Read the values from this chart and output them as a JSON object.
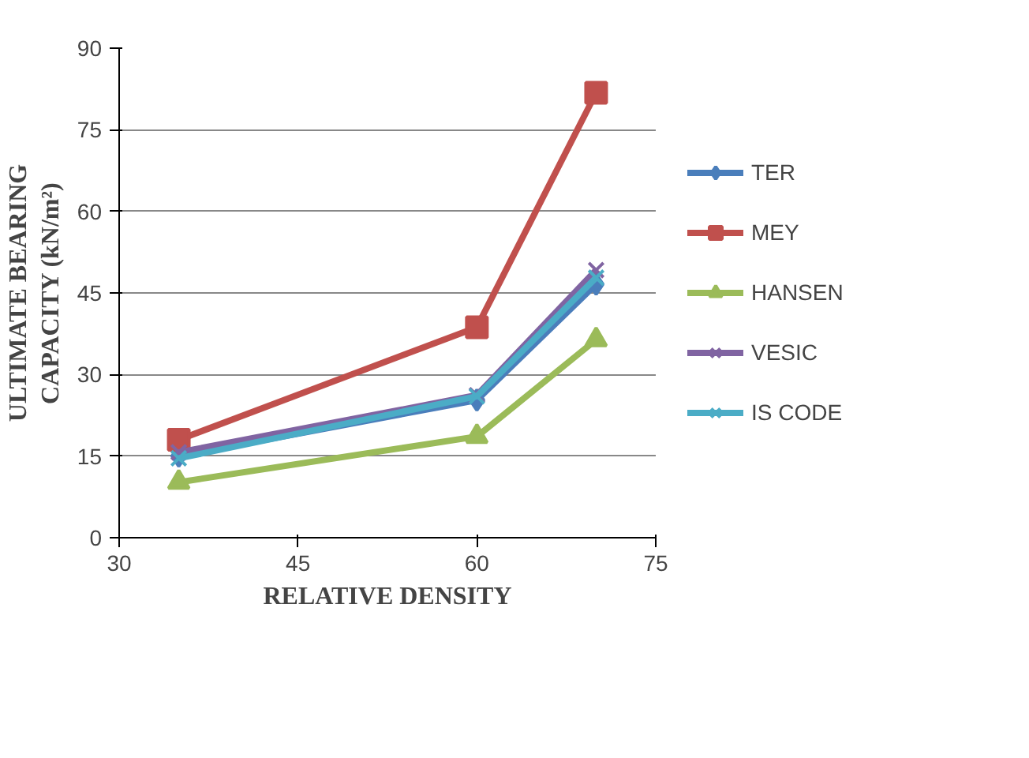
{
  "chart_data": {
    "type": "line",
    "xlabel": "RELATIVE DENSITY",
    "ylabel": "ULTIMATE BEARING CAPACITY (kN/m²)",
    "x": [
      35,
      60,
      70
    ],
    "xlim": [
      30,
      75
    ],
    "xticks": [
      30,
      45,
      60,
      75
    ],
    "ylim": [
      0,
      90
    ],
    "yticks": [
      0,
      15,
      30,
      45,
      60,
      75,
      90
    ],
    "grid": "y",
    "legend": "right",
    "series": [
      {
        "name": "TER",
        "color": "#4a7ebb",
        "marker": "diamond",
        "values": [
          15,
          25.3,
          46.6
        ]
      },
      {
        "name": "MEY",
        "color": "#c0504d",
        "marker": "square",
        "values": [
          18,
          38.7,
          81.8
        ]
      },
      {
        "name": "HANSEN",
        "color": "#9bbb59",
        "marker": "triangle",
        "values": [
          10.2,
          18.6,
          36.4
        ]
      },
      {
        "name": "VESIC",
        "color": "#8064a2",
        "marker": "cross",
        "values": [
          15.7,
          26.2,
          49.2
        ]
      },
      {
        "name": "IS CODE",
        "color": "#4bacc6",
        "marker": "cross",
        "values": [
          14.6,
          26,
          47.8
        ]
      }
    ]
  }
}
